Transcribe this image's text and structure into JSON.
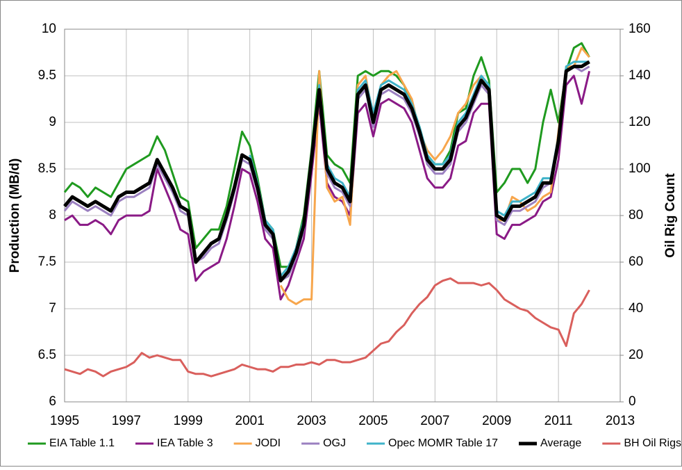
{
  "chart_data": {
    "type": "line",
    "y_label": "Production (MB/d)",
    "y2_label": "Oil Rig Count",
    "x": [
      1995,
      1995.25,
      1995.5,
      1995.75,
      1996,
      1996.25,
      1996.5,
      1996.75,
      1997,
      1997.25,
      1997.5,
      1997.75,
      1998,
      1998.25,
      1998.5,
      1998.75,
      1999,
      1999.25,
      1999.5,
      1999.75,
      2000,
      2000.25,
      2000.5,
      2000.75,
      2001,
      2001.25,
      2001.5,
      2001.75,
      2002,
      2002.25,
      2002.5,
      2002.75,
      2003,
      2003.25,
      2003.5,
      2003.75,
      2004,
      2004.25,
      2004.5,
      2004.75,
      2005,
      2005.25,
      2005.5,
      2005.75,
      2006,
      2006.25,
      2006.5,
      2006.75,
      2007,
      2007.25,
      2007.5,
      2007.75,
      2008,
      2008.25,
      2008.5,
      2008.75,
      2009,
      2009.25,
      2009.5,
      2009.75,
      2010,
      2010.25,
      2010.5,
      2010.75,
      2011,
      2011.25,
      2011.5,
      2011.75,
      2012
    ],
    "series": [
      {
        "name": "EIA Table 1.1",
        "color": "#1f9a1f",
        "values": [
          8.25,
          8.35,
          8.3,
          8.2,
          8.3,
          8.25,
          8.2,
          8.35,
          8.5,
          8.55,
          8.6,
          8.65,
          8.85,
          8.7,
          8.45,
          8.2,
          8.15,
          7.65,
          7.75,
          7.85,
          7.85,
          8.1,
          8.5,
          8.9,
          8.75,
          8.4,
          7.95,
          7.85,
          7.45,
          7.45,
          7.65,
          8.0,
          8.7,
          9.55,
          8.65,
          8.55,
          8.5,
          8.35,
          9.5,
          9.55,
          9.5,
          9.55,
          9.55,
          9.5,
          9.4,
          9.2,
          8.95,
          8.65,
          8.55,
          8.55,
          8.7,
          9.1,
          9.15,
          9.5,
          9.7,
          9.45,
          8.25,
          8.35,
          8.5,
          8.5,
          8.35,
          8.5,
          9.0,
          9.35,
          9.0,
          9.55,
          9.8,
          9.85,
          9.7
        ]
      },
      {
        "name": "IEA Table 3",
        "color": "#8a1a86",
        "values": [
          7.95,
          8.0,
          7.9,
          7.9,
          7.95,
          7.9,
          7.8,
          7.95,
          8.0,
          8.0,
          8.0,
          8.05,
          8.5,
          8.3,
          8.1,
          7.85,
          7.8,
          7.3,
          7.4,
          7.45,
          7.5,
          7.75,
          8.1,
          8.5,
          8.45,
          8.15,
          7.75,
          7.65,
          7.1,
          7.25,
          7.5,
          7.75,
          8.45,
          9.2,
          8.35,
          8.2,
          8.15,
          8.0,
          9.1,
          9.2,
          8.85,
          9.2,
          9.25,
          9.2,
          9.15,
          9.0,
          8.7,
          8.4,
          8.3,
          8.3,
          8.4,
          8.75,
          8.8,
          9.1,
          9.2,
          9.2,
          7.8,
          7.75,
          7.9,
          7.9,
          7.95,
          8.0,
          8.15,
          8.2,
          8.6,
          9.4,
          9.5,
          9.2,
          9.55
        ]
      },
      {
        "name": "JODI",
        "color": "#f7a64c",
        "values": [
          null,
          null,
          null,
          null,
          null,
          null,
          null,
          null,
          null,
          null,
          null,
          null,
          null,
          null,
          null,
          null,
          null,
          null,
          null,
          null,
          null,
          null,
          null,
          null,
          null,
          null,
          null,
          null,
          7.25,
          7.1,
          7.05,
          7.1,
          7.1,
          9.55,
          8.3,
          8.15,
          8.2,
          7.9,
          9.4,
          9.5,
          9.05,
          9.4,
          9.5,
          9.55,
          9.4,
          9.25,
          8.9,
          8.7,
          8.6,
          8.7,
          8.85,
          9.1,
          9.2,
          9.4,
          9.5,
          9.3,
          7.95,
          7.95,
          8.2,
          8.15,
          8.05,
          8.1,
          8.2,
          8.25,
          8.9,
          9.6,
          9.6,
          9.8,
          9.7
        ]
      },
      {
        "name": "OGJ",
        "color": "#9b80c0",
        "values": [
          8.05,
          8.15,
          8.1,
          8.05,
          8.1,
          8.05,
          8.0,
          8.15,
          8.2,
          8.2,
          8.25,
          8.3,
          8.55,
          8.4,
          8.25,
          8.05,
          8.0,
          7.5,
          7.55,
          7.65,
          7.7,
          7.95,
          8.25,
          8.6,
          8.55,
          8.25,
          7.85,
          7.75,
          7.3,
          7.35,
          7.55,
          7.85,
          8.55,
          9.3,
          8.45,
          8.3,
          8.25,
          8.1,
          9.25,
          9.35,
          8.95,
          9.3,
          9.35,
          9.3,
          9.25,
          9.1,
          8.85,
          8.55,
          8.45,
          8.45,
          8.55,
          8.9,
          9.0,
          9.2,
          9.4,
          9.3,
          7.95,
          7.9,
          8.05,
          8.05,
          8.1,
          8.15,
          8.3,
          8.35,
          8.8,
          9.55,
          9.6,
          9.55,
          9.6
        ]
      },
      {
        "name": "Opec MOMR Table 17",
        "color": "#3fb3c9",
        "values": [
          null,
          null,
          null,
          null,
          null,
          null,
          null,
          null,
          null,
          null,
          null,
          null,
          null,
          null,
          null,
          null,
          null,
          null,
          null,
          null,
          null,
          null,
          null,
          null,
          8.65,
          8.35,
          7.95,
          7.85,
          7.35,
          7.45,
          7.65,
          7.95,
          8.6,
          9.4,
          8.55,
          8.4,
          8.35,
          8.2,
          9.35,
          9.45,
          9.1,
          9.4,
          9.45,
          9.4,
          9.35,
          9.2,
          8.95,
          8.65,
          8.55,
          8.55,
          8.65,
          9.0,
          9.1,
          9.3,
          9.5,
          9.4,
          8.05,
          8.0,
          8.15,
          8.15,
          8.2,
          8.25,
          8.4,
          8.4,
          8.85,
          9.6,
          9.65,
          9.65,
          9.65
        ]
      },
      {
        "name": "Average",
        "color": "#000000",
        "width": 5,
        "values": [
          8.1,
          8.2,
          8.15,
          8.1,
          8.15,
          8.1,
          8.05,
          8.2,
          8.25,
          8.25,
          8.3,
          8.35,
          8.6,
          8.45,
          8.3,
          8.1,
          8.05,
          7.5,
          7.6,
          7.7,
          7.75,
          8.0,
          8.3,
          8.65,
          8.6,
          8.3,
          7.9,
          7.8,
          7.3,
          7.4,
          7.6,
          7.9,
          8.6,
          9.35,
          8.5,
          8.35,
          8.3,
          8.15,
          9.3,
          9.4,
          9.0,
          9.35,
          9.4,
          9.35,
          9.3,
          9.15,
          8.9,
          8.6,
          8.5,
          8.5,
          8.6,
          8.95,
          9.05,
          9.25,
          9.45,
          9.35,
          8.0,
          7.95,
          8.1,
          8.1,
          8.15,
          8.2,
          8.35,
          8.35,
          8.8,
          9.55,
          9.6,
          9.6,
          9.65
        ]
      },
      {
        "name": "BH Oil Rigs (RHS)",
        "color": "#d95f5c",
        "axis": "y2",
        "values": [
          14,
          13,
          12,
          14,
          13,
          11,
          13,
          14,
          15,
          17,
          21,
          19,
          20,
          19,
          18,
          18,
          13,
          12,
          12,
          11,
          12,
          13,
          14,
          16,
          15,
          14,
          14,
          13,
          15,
          15,
          16,
          16,
          17,
          16,
          18,
          18,
          17,
          17,
          18,
          19,
          22,
          25,
          26,
          30,
          33,
          38,
          42,
          45,
          50,
          52,
          53,
          51,
          51,
          51,
          50,
          51,
          48,
          44,
          42,
          40,
          39,
          36,
          34,
          32,
          31,
          24,
          38,
          42,
          48
        ]
      }
    ],
    "xlim": [
      1995,
      2013
    ],
    "xticks": [
      1995,
      1997,
      1999,
      2001,
      2003,
      2005,
      2007,
      2009,
      2011,
      2013
    ],
    "ylim": [
      6,
      10
    ],
    "yticks": [
      6,
      6.5,
      7,
      7.5,
      8,
      8.5,
      9,
      9.5,
      10
    ],
    "y2lim": [
      0,
      160
    ],
    "y2ticks": [
      0,
      20,
      40,
      60,
      80,
      100,
      120,
      140,
      160
    ],
    "grid": true,
    "legend": "bottom"
  }
}
